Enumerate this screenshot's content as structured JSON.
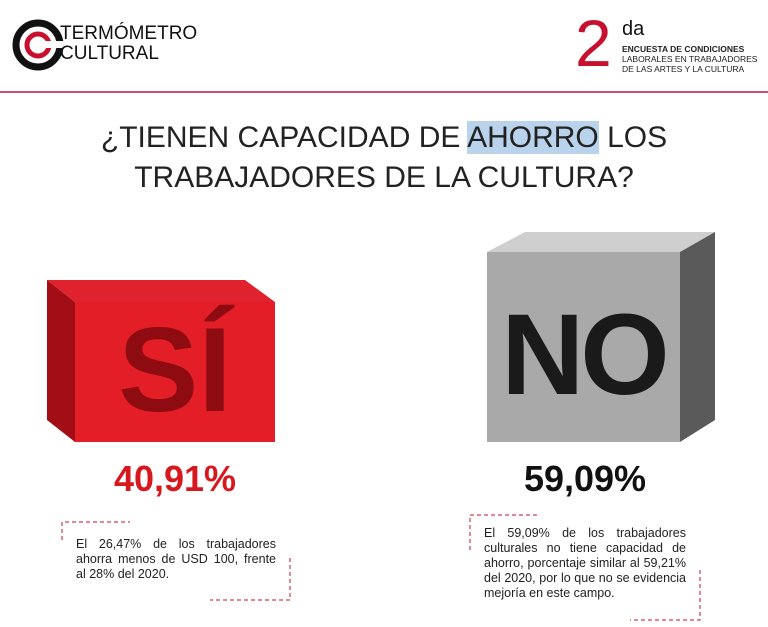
{
  "header": {
    "logo": {
      "line1": "TERMÓMETRO",
      "line2": "CULTURAL"
    },
    "edition": {
      "number": "2",
      "suffix": "da",
      "line1": "ENCUESTA DE CONDICIONES",
      "line2": "LABORALES EN TRABAJADORES",
      "line3": "DE LAS ARTES Y LA CULTURA"
    }
  },
  "title": {
    "parts": [
      "¿TIENEN CAPACIDAD DE",
      "AHORRO",
      "LOS",
      "TRABAJADORES DE LA CULTURA?"
    ]
  },
  "options": [
    {
      "label": "SÍ",
      "percent": "40,91%",
      "note": "El 26,47% de los trabajadores ahorra menos de USD 100, frente al 28% del 2020."
    },
    {
      "label": "NO",
      "percent": "59,09%",
      "note": "El 59,09% de los trabajadores culturales no tiene capacidad de ahorro, porcentaje similar al 59,21% del 2020, por lo que no se evidencia mejoría en este campo."
    }
  ]
}
